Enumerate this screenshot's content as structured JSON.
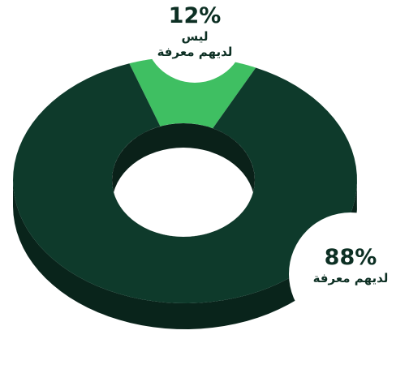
{
  "chart_data": {
    "type": "donut",
    "categories": [
      "ليس\nلديهم معرفة",
      "لديهم معرفة"
    ],
    "values": [
      12,
      88
    ],
    "value_labels": [
      "12%",
      "88%"
    ],
    "colors": [
      "#3fbf62",
      "#0e3a2b"
    ]
  }
}
